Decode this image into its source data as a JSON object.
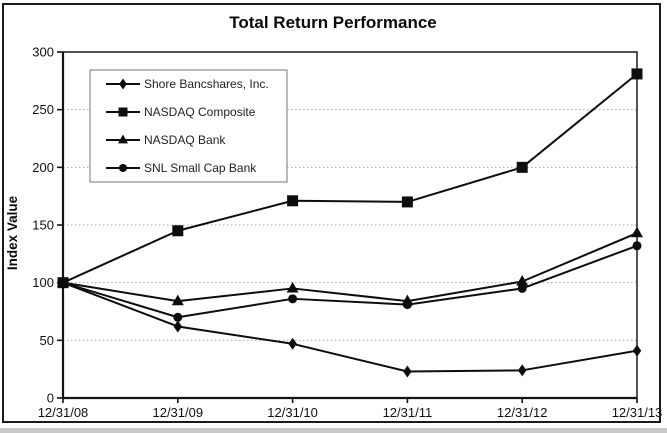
{
  "window": {
    "background": "#ffffff",
    "border_color": "#1b1b1b",
    "bottom_strip_color": "#c9c9c9"
  },
  "chart_data": {
    "type": "line",
    "title": "Total Return Performance",
    "xlabel": "",
    "ylabel": "Index Value",
    "categories": [
      "12/31/08",
      "12/31/09",
      "12/31/10",
      "12/31/11",
      "12/31/12",
      "12/31/13"
    ],
    "series": [
      {
        "name": "Shore Bancshares, Inc.",
        "marker": "diamond",
        "values": [
          100,
          62,
          47,
          23,
          24,
          41
        ]
      },
      {
        "name": "NASDAQ Composite",
        "marker": "square",
        "values": [
          100,
          145,
          171,
          170,
          200,
          281
        ]
      },
      {
        "name": "NASDAQ Bank",
        "marker": "triangle",
        "values": [
          100,
          84,
          95,
          84,
          101,
          143
        ]
      },
      {
        "name": "SNL Small Cap Bank",
        "marker": "circle",
        "values": [
          100,
          70,
          86,
          81,
          95,
          132
        ]
      }
    ],
    "ylim": [
      0,
      300
    ],
    "yticks": [
      0,
      50,
      100,
      150,
      200,
      250,
      300
    ],
    "grid": true,
    "gridlines_at": [
      50,
      100,
      150,
      200,
      250
    ],
    "legend_position": "upper-left",
    "line_color": "#0d0d0d",
    "grid_color": "#a9a9a9",
    "legend_border_color": "#8c8c8c"
  }
}
